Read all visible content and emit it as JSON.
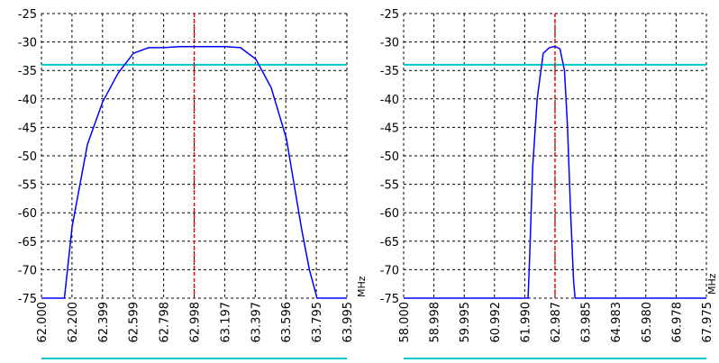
{
  "chart_data": [
    {
      "type": "line",
      "xlabel": "",
      "ylabel": "",
      "ylim": [
        -75,
        -25
      ],
      "yticks": [
        "-25",
        "-30",
        "-35",
        "-40",
        "-45",
        "-50",
        "-55",
        "-60",
        "-65",
        "-70",
        "-75"
      ],
      "xticks": [
        "62.000",
        "62.200",
        "62.399",
        "62.599",
        "62.798",
        "62.998",
        "63.197",
        "63.397",
        "63.596",
        "63.795",
        "63.995"
      ],
      "xlim": [
        62.0,
        63.995
      ],
      "grid": true,
      "reference_line": -34,
      "center_marker": 62.998,
      "line_color": "#0000ff",
      "reference_color": "#00c8c8",
      "marker_color": "#ff0000",
      "series": [
        {
          "x": [
            62.0,
            62.14,
            62.15,
            62.2,
            62.3,
            62.4,
            62.5,
            62.6,
            62.7,
            62.8,
            62.9,
            63.0,
            63.1,
            63.2,
            63.3,
            63.4,
            63.5,
            63.6,
            63.7,
            63.75,
            63.8,
            63.995
          ],
          "y": [
            -75,
            -75,
            -75,
            -62.5,
            -48,
            -40.5,
            -35.5,
            -32,
            -31,
            -31,
            -30.8,
            -30.8,
            -30.8,
            -30.8,
            -31,
            -33,
            -38,
            -47,
            -63,
            -70,
            -75,
            -75
          ]
        }
      ]
    },
    {
      "type": "line",
      "xlabel": "",
      "ylabel": "",
      "unit_label": "MHz",
      "ylim": [
        -75,
        -25
      ],
      "yticks": [
        "-25",
        "-30",
        "-35",
        "-40",
        "-45",
        "-50",
        "-55",
        "-60",
        "-65",
        "-70",
        "-75"
      ],
      "xticks": [
        "58.000",
        "58.998",
        "59.995",
        "60.992",
        "61.990",
        "62.987",
        "63.985",
        "64.983",
        "65.980",
        "66.978",
        "67.975"
      ],
      "xlim": [
        58.0,
        67.975
      ],
      "grid": true,
      "reference_line": -34,
      "center_marker": 62.987,
      "line_color": "#0000ff",
      "reference_color": "#00c8c8",
      "marker_color": "#ff0000",
      "series": [
        {
          "x": [
            58.0,
            62.1,
            62.15,
            62.25,
            62.4,
            62.6,
            62.8,
            62.95,
            63.0,
            63.15,
            63.3,
            63.4,
            63.5,
            63.6,
            63.65,
            67.975
          ],
          "y": [
            -75,
            -75,
            -68,
            -52,
            -40,
            -32,
            -31,
            -30.8,
            -30.8,
            -31.2,
            -35,
            -45,
            -60,
            -72,
            -75,
            -75
          ]
        }
      ]
    }
  ],
  "footer": {
    "unit_right": "MHz"
  }
}
